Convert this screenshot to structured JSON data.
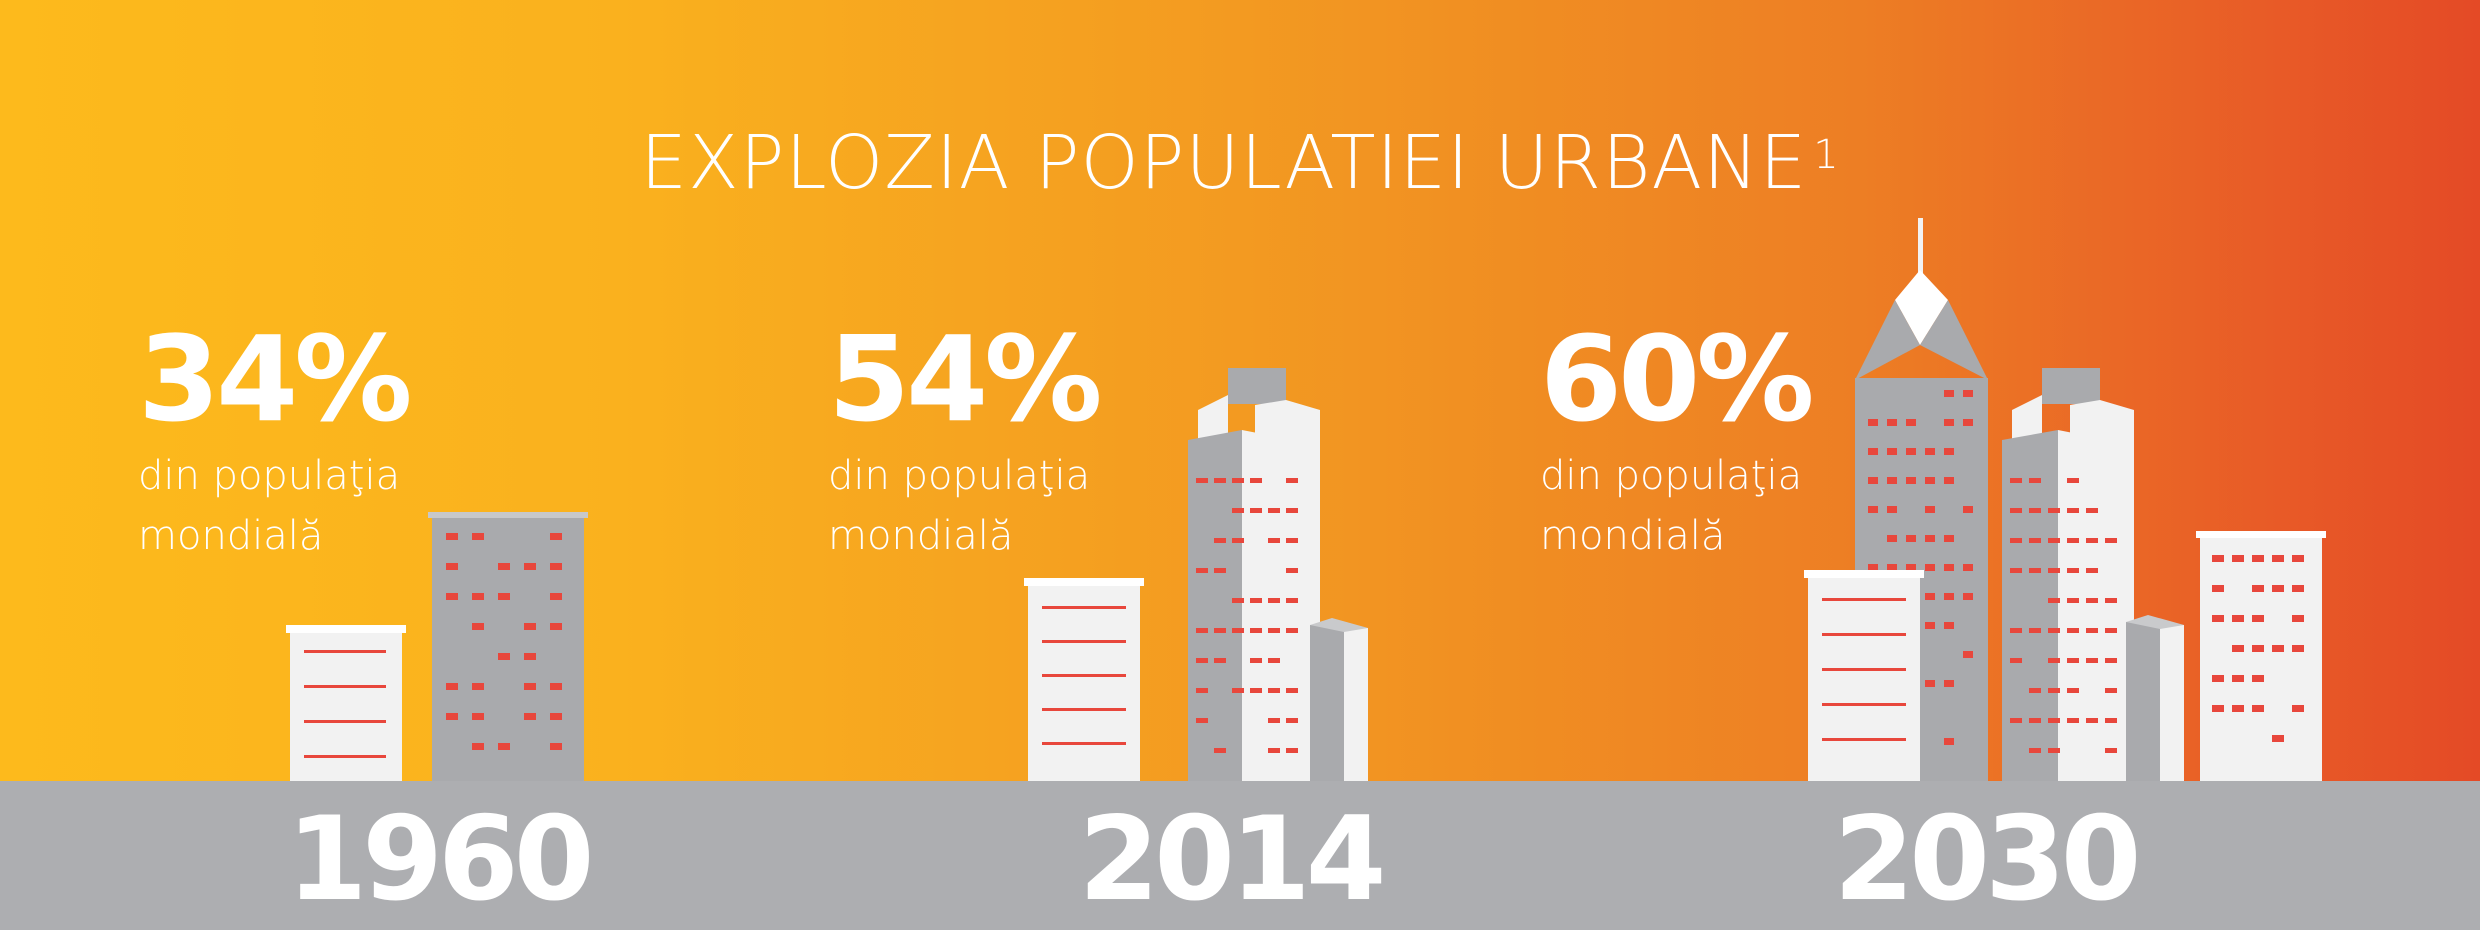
{
  "title": {
    "text": "EXPLOZIA POPULATIEI URBANE",
    "footnote": "1"
  },
  "periods": [
    {
      "year": "1960",
      "percent": "34%",
      "line1": "din populaţia",
      "line2": "mondială"
    },
    {
      "year": "2014",
      "percent": "54%",
      "line1": "din populaţia",
      "line2": "mondială"
    },
    {
      "year": "2030",
      "percent": "60%",
      "line1": "din populaţia",
      "line2": "mondială"
    }
  ],
  "colors": {
    "gradient_start": "#fdba1c",
    "gradient_end": "#e44a26",
    "ground": "#adaeb1",
    "building_white": "#f2f2f2",
    "building_gray": "#a9aaad",
    "window_red": "#e8473c",
    "text": "#ffffff"
  }
}
